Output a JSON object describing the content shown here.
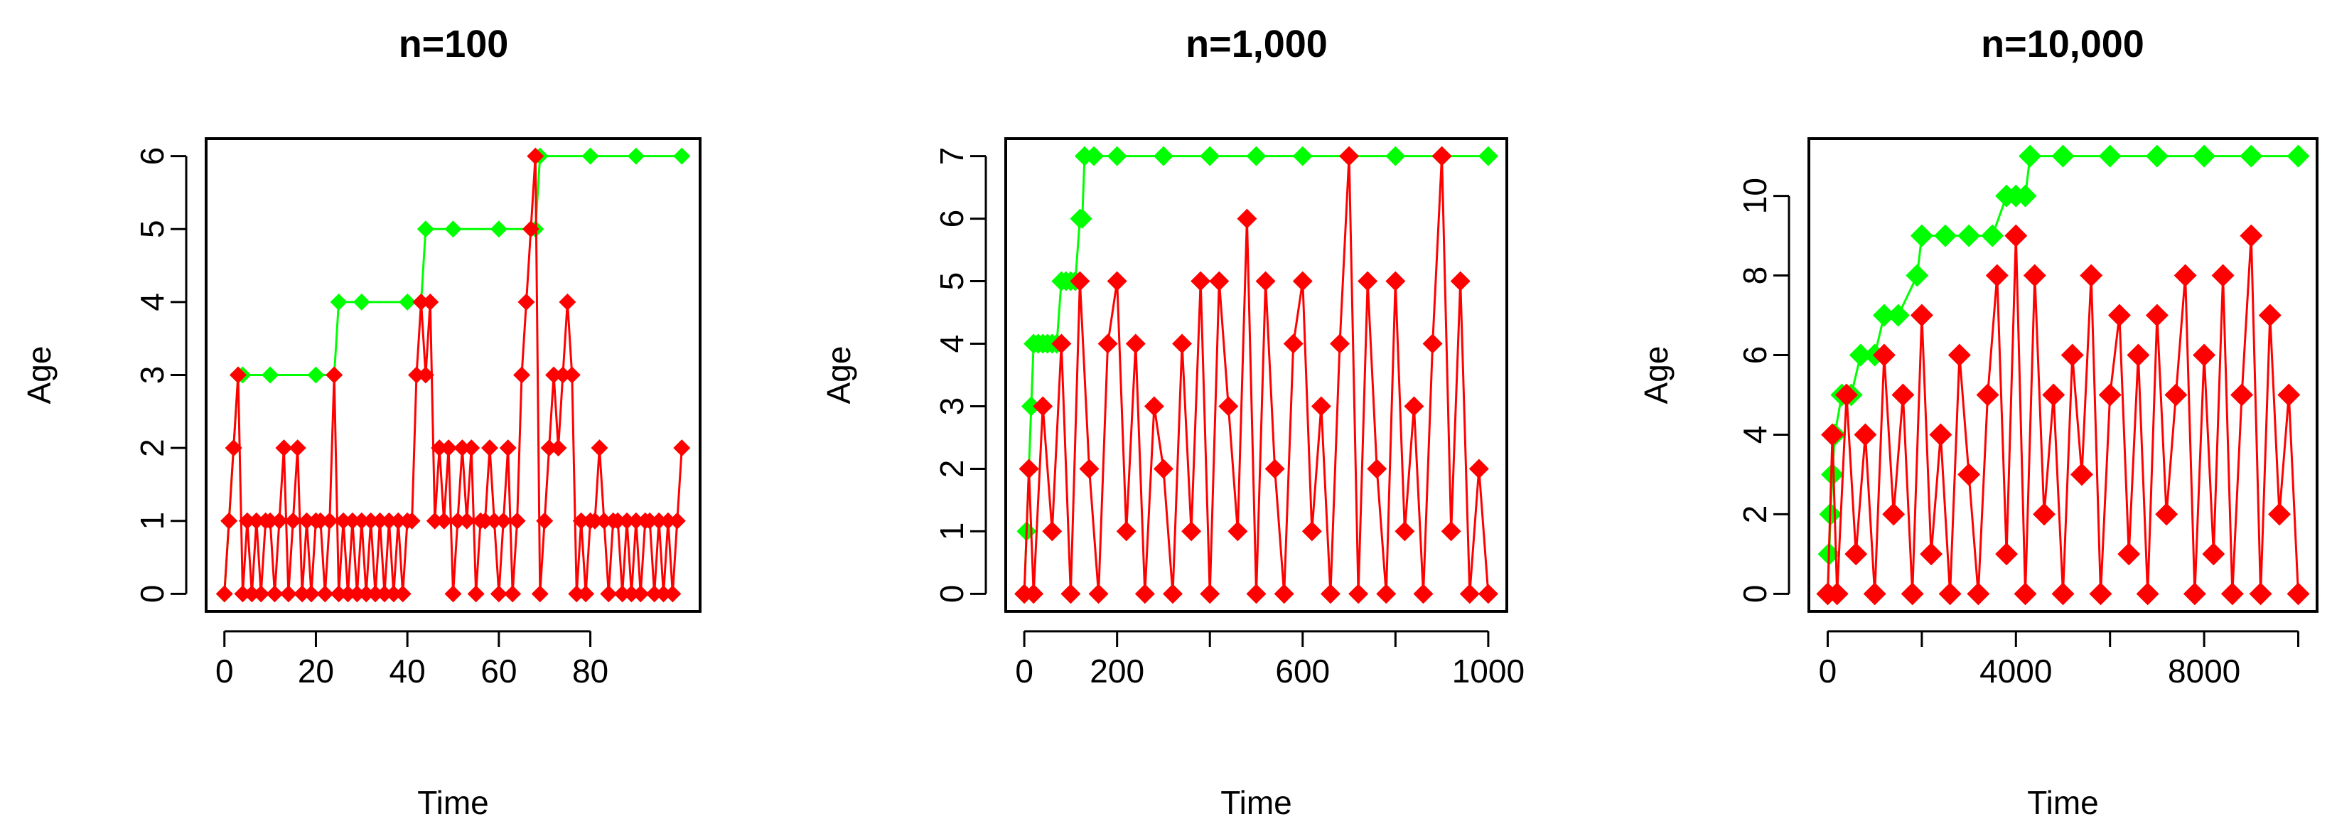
{
  "colors": {
    "max_age": "#00ff00",
    "age": "#ff0000",
    "axis": "#000000",
    "background": "#ffffff"
  },
  "chart_data": [
    {
      "type": "line",
      "title": "n=100",
      "xlabel": "Time",
      "ylabel": "Age",
      "xlim": [
        0,
        100
      ],
      "ylim": [
        0,
        6
      ],
      "xticks": [
        0,
        20,
        40,
        60,
        80
      ],
      "yticks": [
        0,
        1,
        2,
        3,
        4,
        5,
        6
      ],
      "xtick_labels": [
        "0",
        "20",
        "40",
        "60",
        "80"
      ],
      "ytick_labels": [
        "0",
        "1",
        "2",
        "3",
        "4",
        "5",
        "6"
      ],
      "grid": false,
      "series": [
        {
          "color": "#00ff00",
          "marker": "diamond",
          "x": [
            0,
            1,
            2,
            3,
            4,
            10,
            20,
            24,
            25,
            30,
            40,
            43,
            44,
            50,
            60,
            68,
            69,
            80,
            90,
            100
          ],
          "values": [
            0,
            1,
            2,
            3,
            3,
            3,
            3,
            3,
            4,
            4,
            4,
            4,
            5,
            5,
            5,
            5,
            6,
            6,
            6,
            6
          ]
        },
        {
          "color": "#ff0000",
          "marker": "diamond",
          "x": [
            0,
            1,
            2,
            3,
            4,
            5,
            6,
            7,
            8,
            9,
            10,
            11,
            12,
            13,
            14,
            15,
            16,
            17,
            18,
            19,
            20,
            21,
            22,
            23,
            24,
            25,
            26,
            27,
            28,
            29,
            30,
            31,
            32,
            33,
            34,
            35,
            36,
            37,
            38,
            39,
            40,
            41,
            42,
            43,
            44,
            45,
            46,
            47,
            48,
            49,
            50,
            51,
            52,
            53,
            54,
            55,
            56,
            57,
            58,
            59,
            60,
            61,
            62,
            63,
            64,
            65,
            66,
            67,
            68,
            69,
            70,
            71,
            72,
            73,
            74,
            75,
            76,
            77,
            78,
            79,
            80,
            81,
            82,
            83,
            84,
            85,
            86,
            87,
            88,
            89,
            90,
            91,
            92,
            93,
            94,
            95,
            96,
            97,
            98,
            99,
            100
          ],
          "values": [
            0,
            1,
            2,
            3,
            0,
            1,
            0,
            1,
            0,
            1,
            1,
            0,
            1,
            2,
            0,
            1,
            2,
            0,
            1,
            0,
            1,
            1,
            0,
            1,
            3,
            0,
            1,
            0,
            1,
            0,
            1,
            0,
            1,
            0,
            1,
            0,
            1,
            0,
            1,
            0,
            1,
            1,
            3,
            4,
            3,
            4,
            1,
            2,
            1,
            2,
            0,
            1,
            2,
            1,
            2,
            0,
            1,
            1,
            2,
            1,
            0,
            1,
            2,
            0,
            1,
            3,
            4,
            5,
            6,
            0,
            1,
            2,
            3,
            2,
            3,
            4,
            3,
            0,
            1,
            0,
            1,
            1,
            2,
            1,
            0,
            1,
            1,
            0,
            1,
            0,
            1,
            0,
            1,
            1,
            0,
            1,
            0,
            1,
            0,
            1,
            2
          ]
        }
      ]
    },
    {
      "type": "line",
      "title": "n=1,000",
      "xlabel": "Time",
      "ylabel": "Age",
      "xlim": [
        0,
        1000
      ],
      "ylim": [
        0,
        7
      ],
      "xticks": [
        0,
        200,
        400,
        600,
        800,
        1000
      ],
      "yticks": [
        0,
        1,
        2,
        3,
        4,
        5,
        6,
        7
      ],
      "xtick_labels": [
        "0",
        "200",
        "",
        "600",
        "",
        "1000"
      ],
      "ytick_labels": [
        "0",
        "1",
        "2",
        "3",
        "4",
        "5",
        "6",
        "7"
      ],
      "grid": false,
      "series": [
        {
          "color": "#00ff00",
          "marker": "diamond",
          "x": [
            0,
            5,
            10,
            15,
            20,
            30,
            40,
            50,
            60,
            70,
            80,
            90,
            100,
            110,
            120,
            125,
            130,
            150,
            200,
            300,
            400,
            500,
            600,
            700,
            800,
            900,
            1000
          ],
          "values": [
            0,
            1,
            2,
            3,
            4,
            4,
            4,
            4,
            4,
            4,
            5,
            5,
            5,
            5,
            6,
            6,
            7,
            7,
            7,
            7,
            7,
            7,
            7,
            7,
            7,
            7,
            7
          ]
        },
        {
          "color": "#ff0000",
          "marker": "diamond",
          "x": [
            0,
            10,
            20,
            40,
            60,
            80,
            100,
            120,
            140,
            160,
            180,
            200,
            220,
            240,
            260,
            280,
            300,
            320,
            340,
            360,
            380,
            400,
            420,
            440,
            460,
            480,
            500,
            520,
            540,
            560,
            580,
            600,
            620,
            640,
            660,
            680,
            700,
            720,
            740,
            760,
            780,
            800,
            820,
            840,
            860,
            880,
            900,
            920,
            940,
            960,
            980,
            1000
          ],
          "values": [
            0,
            2,
            0,
            3,
            1,
            4,
            0,
            5,
            2,
            0,
            4,
            5,
            1,
            4,
            0,
            3,
            2,
            0,
            4,
            1,
            5,
            0,
            5,
            3,
            1,
            6,
            0,
            5,
            2,
            0,
            4,
            5,
            1,
            3,
            0,
            4,
            7,
            0,
            5,
            2,
            0,
            5,
            1,
            3,
            0,
            4,
            7,
            1,
            5,
            0,
            2,
            0
          ]
        }
      ]
    },
    {
      "type": "line",
      "title": "n=10,000",
      "xlabel": "Time",
      "ylabel": "Age",
      "xlim": [
        0,
        10000
      ],
      "ylim": [
        0,
        11
      ],
      "xticks": [
        0,
        2000,
        4000,
        6000,
        8000,
        10000
      ],
      "yticks": [
        0,
        2,
        4,
        6,
        8,
        10
      ],
      "xtick_labels": [
        "0",
        "",
        "4000",
        "",
        "8000",
        ""
      ],
      "ytick_labels": [
        "0",
        "2",
        "4",
        "6",
        "8",
        "10"
      ],
      "grid": false,
      "series": [
        {
          "color": "#00ff00",
          "marker": "diamond",
          "x": [
            0,
            30,
            60,
            100,
            150,
            300,
            500,
            700,
            1000,
            1200,
            1500,
            1900,
            2000,
            2500,
            3000,
            3500,
            3800,
            4000,
            4200,
            4300,
            5000,
            6000,
            7000,
            8000,
            9000,
            10000
          ],
          "values": [
            0,
            1,
            2,
            3,
            4,
            5,
            5,
            6,
            6,
            7,
            7,
            8,
            9,
            9,
            9,
            9,
            10,
            10,
            10,
            11,
            11,
            11,
            11,
            11,
            11,
            11
          ]
        },
        {
          "color": "#ff0000",
          "marker": "diamond",
          "x": [
            0,
            100,
            200,
            400,
            600,
            800,
            1000,
            1200,
            1400,
            1600,
            1800,
            2000,
            2200,
            2400,
            2600,
            2800,
            3000,
            3200,
            3400,
            3600,
            3800,
            4000,
            4200,
            4400,
            4600,
            4800,
            5000,
            5200,
            5400,
            5600,
            5800,
            6000,
            6200,
            6400,
            6600,
            6800,
            7000,
            7200,
            7400,
            7600,
            7800,
            8000,
            8200,
            8400,
            8600,
            8800,
            9000,
            9200,
            9400,
            9600,
            9800,
            10000
          ],
          "values": [
            0,
            4,
            0,
            5,
            1,
            4,
            0,
            6,
            2,
            5,
            0,
            7,
            1,
            4,
            0,
            6,
            3,
            0,
            5,
            8,
            1,
            9,
            0,
            8,
            2,
            5,
            0,
            6,
            3,
            8,
            0,
            5,
            7,
            1,
            6,
            0,
            7,
            2,
            5,
            8,
            0,
            6,
            1,
            8,
            0,
            5,
            9,
            0,
            7,
            2,
            5,
            0
          ]
        }
      ]
    }
  ]
}
